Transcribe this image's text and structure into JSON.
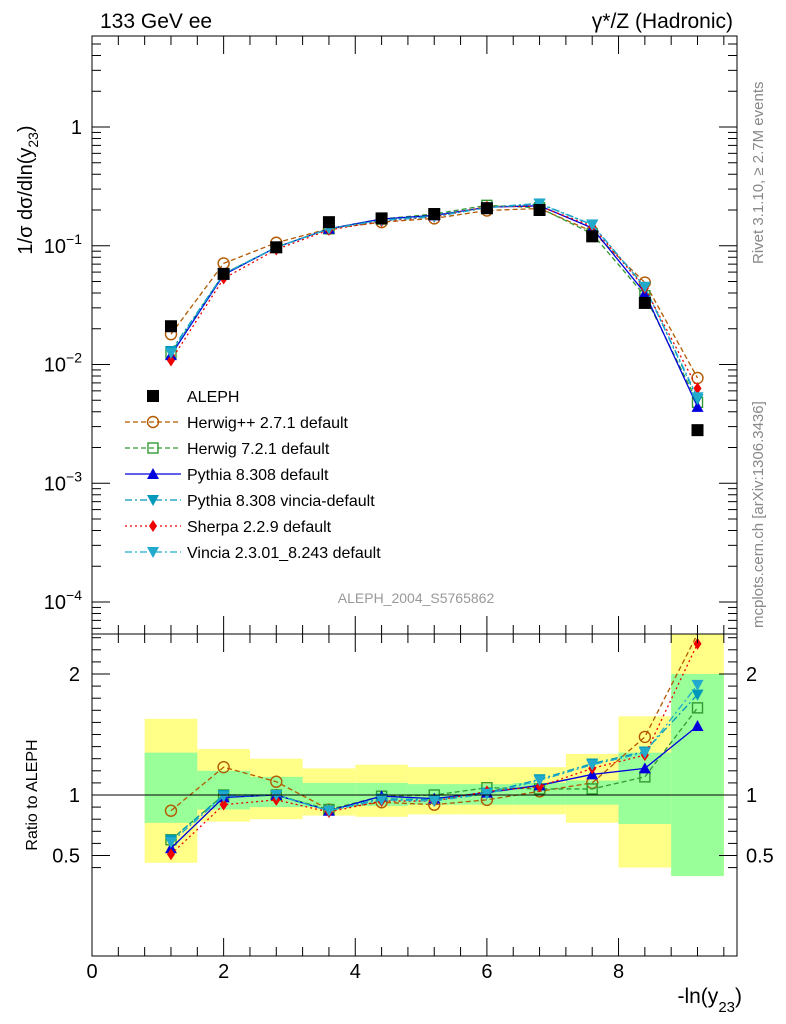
{
  "header": {
    "left": "133 GeV ee",
    "right": "γ*/Z (Hadronic)"
  },
  "side": {
    "rivet": "Rivet 3.1.10, ≥ 2.7M events",
    "mcplots": "mcplots.cern.ch [arXiv:1306.3436]"
  },
  "analysis_label": "ALEPH_2004_S5765862",
  "axes": {
    "ylabel_main": "1/σ  dσ/dln(y",
    "ylabel_main_sub": "23",
    "ylabel_main_close": ")",
    "ylabel_ratio": "Ratio to ALEPH",
    "xlabel": "-ln(y",
    "xlabel_sub": "23",
    "xlabel_close": ")"
  },
  "colors": {
    "ALEPH": "#000000",
    "Herwig++ 2.7.1 default": "#b35900",
    "Herwig 7.2.1 default": "#339933",
    "Pythia 8.308 default": "#0000dd",
    "Pythia 8.308 vincia-default": "#0099bb",
    "Sherpa 2.2.9 default": "#ee0000",
    "Vincia 2.3.01_8.243 default": "#22aacc",
    "band_inner": "#99ff99",
    "band_outer": "#ffff88"
  },
  "chart_data": [
    {
      "type": "line",
      "scale": "log",
      "xlim": [
        0,
        9.8
      ],
      "ylim": [
        5e-05,
        6
      ],
      "yticks": [
        {
          "value": 0.0001,
          "base": "10",
          "exp": "−4"
        },
        {
          "value": 0.001,
          "base": "10",
          "exp": "−3"
        },
        {
          "value": 0.01,
          "base": "10",
          "exp": "−2"
        },
        {
          "value": 0.1,
          "base": "10",
          "exp": "−1"
        },
        {
          "value": 1,
          "base": "1",
          "exp": ""
        }
      ],
      "x": [
        1.2,
        2.0,
        2.8,
        3.6,
        4.4,
        5.2,
        6.0,
        6.8,
        7.6,
        8.4,
        9.2
      ],
      "bin_edges": [
        0.8,
        1.6,
        2.4,
        3.2,
        4.0,
        4.8,
        5.6,
        6.4,
        7.2,
        8.0,
        8.8,
        9.6
      ],
      "series": [
        {
          "name": "ALEPH",
          "marker": "square",
          "values": [
            0.021,
            0.058,
            0.097,
            0.158,
            0.17,
            0.185,
            0.207,
            0.2,
            0.12,
            0.033,
            0.0028
          ]
        },
        {
          "name": "Herwig++ 2.7.1 default",
          "marker": "open-circle",
          "dash": "5,3",
          "values": [
            0.018,
            0.071,
            0.106,
            0.139,
            0.158,
            0.17,
            0.198,
            0.206,
            0.132,
            0.049,
            0.0077
          ]
        },
        {
          "name": "Herwig 7.2.1 default",
          "marker": "open-square",
          "dash": "5,3",
          "values": [
            0.0125,
            0.058,
            0.097,
            0.139,
            0.168,
            0.185,
            0.219,
            0.209,
            0.126,
            0.038,
            0.0048
          ]
        },
        {
          "name": "Pythia 8.308 default",
          "marker": "triangle-up",
          "dash": "",
          "values": [
            0.012,
            0.057,
            0.097,
            0.139,
            0.168,
            0.18,
            0.211,
            0.217,
            0.141,
            0.04,
            0.0044
          ]
        },
        {
          "name": "Pythia 8.308 vincia-default",
          "marker": "triangle-down",
          "dash": "7,3,2,3",
          "values": [
            0.013,
            0.058,
            0.097,
            0.139,
            0.165,
            0.178,
            0.211,
            0.227,
            0.151,
            0.045,
            0.0051
          ]
        },
        {
          "name": "Sherpa 2.2.9 default",
          "marker": "diamond",
          "dash": "2,3",
          "values": [
            0.0108,
            0.053,
            0.093,
            0.136,
            0.161,
            0.175,
            0.213,
            0.215,
            0.146,
            0.044,
            0.0063
          ]
        },
        {
          "name": "Vincia 2.3.01_8.243 default",
          "marker": "triangle-down",
          "dash": "7,3,2,3",
          "values": [
            0.0125,
            0.058,
            0.097,
            0.139,
            0.163,
            0.175,
            0.209,
            0.225,
            0.15,
            0.045,
            0.0053
          ]
        }
      ]
    },
    {
      "type": "line",
      "xlim": [
        0,
        9.8
      ],
      "ylim": [
        0.35,
        2.35
      ],
      "yticks": [
        0.5,
        1,
        2
      ],
      "xticks": [
        0,
        2,
        4,
        6,
        8
      ],
      "x": [
        1.2,
        2.0,
        2.8,
        3.6,
        4.4,
        5.2,
        6.0,
        6.8,
        7.6,
        8.4,
        9.2
      ],
      "bin_edges": [
        0.8,
        1.6,
        2.4,
        3.2,
        4.0,
        4.8,
        5.6,
        6.4,
        7.2,
        8.0,
        8.8,
        9.6
      ],
      "band_inner": [
        [
          0.77,
          1.35
        ],
        [
          0.88,
          1.2
        ],
        [
          0.9,
          1.15
        ],
        [
          0.9,
          1.1
        ],
        [
          0.91,
          1.1
        ],
        [
          0.92,
          1.09
        ],
        [
          0.92,
          1.09
        ],
        [
          0.92,
          1.1
        ],
        [
          0.92,
          1.12
        ],
        [
          0.76,
          1.35
        ],
        [
          0.33,
          2.0
        ]
      ],
      "band_outer": [
        [
          0.44,
          1.63
        ],
        [
          0.78,
          1.38
        ],
        [
          0.8,
          1.3
        ],
        [
          0.83,
          1.22
        ],
        [
          0.82,
          1.25
        ],
        [
          0.84,
          1.23
        ],
        [
          0.84,
          1.23
        ],
        [
          0.84,
          1.23
        ],
        [
          0.77,
          1.34
        ],
        [
          0.4,
          1.65
        ],
        [
          0.33,
          2.4
        ]
      ],
      "series": [
        {
          "name": "Herwig++ 2.7.1 default",
          "values": [
            0.87,
            1.23,
            1.11,
            0.88,
            0.94,
            0.92,
            0.96,
            1.03,
            1.1,
            1.48,
            2.75
          ]
        },
        {
          "name": "Herwig 7.2.1 default",
          "values": [
            0.63,
            1.0,
            1.0,
            0.88,
            0.99,
            1.0,
            1.06,
            1.05,
            1.05,
            1.15,
            1.72
          ]
        },
        {
          "name": "Pythia 8.308 default",
          "values": [
            0.56,
            0.98,
            1.0,
            0.87,
            0.99,
            0.97,
            1.02,
            1.08,
            1.17,
            1.22,
            1.57
          ]
        },
        {
          "name": "Pythia 8.308 vincia-default",
          "values": [
            0.63,
            1.0,
            1.0,
            0.87,
            0.97,
            0.96,
            1.02,
            1.13,
            1.26,
            1.36,
            1.83
          ]
        },
        {
          "name": "Sherpa 2.2.9 default",
          "values": [
            0.51,
            0.92,
            0.96,
            0.86,
            0.95,
            0.95,
            1.03,
            1.07,
            1.22,
            1.33,
            2.25
          ]
        },
        {
          "name": "Vincia 2.3.01_8.243 default",
          "values": [
            0.61,
            0.99,
            1.0,
            0.87,
            0.96,
            0.95,
            1.01,
            1.12,
            1.25,
            1.35,
            1.91
          ]
        }
      ]
    }
  ]
}
